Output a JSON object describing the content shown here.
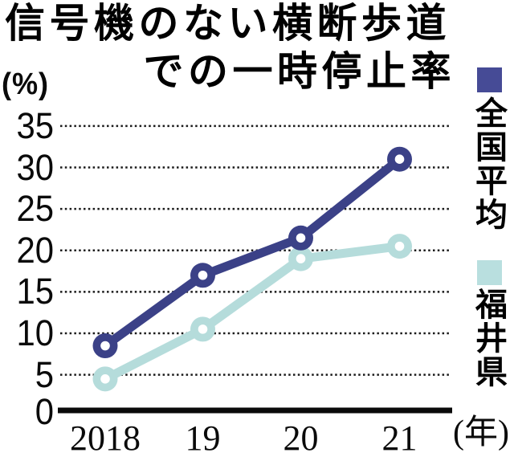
{
  "title": {
    "line1": "信号機のない横断歩道",
    "line2": "での一時停止率"
  },
  "axes": {
    "y_unit": "(%)",
    "x_unit": "(年)",
    "y_ticks": [
      35,
      30,
      25,
      20,
      15,
      10,
      5,
      0
    ],
    "x_ticks": [
      "2018",
      "19",
      "20",
      "21"
    ]
  },
  "legend": [
    {
      "label": "全国平均",
      "color": "#464b96"
    },
    {
      "label": "福井県",
      "color": "#b9dfdf"
    }
  ],
  "chart_data": {
    "type": "line",
    "title": "信号機のない横断歩道での一時停止率",
    "categories": [
      "2018",
      "19",
      "20",
      "21"
    ],
    "series": [
      {
        "name": "全国平均",
        "color": "#3b4187",
        "values": [
          8.5,
          17,
          21.5,
          31
        ]
      },
      {
        "name": "福井県",
        "color": "#b5dcdb",
        "values": [
          4.5,
          10.5,
          19,
          20.5
        ]
      }
    ],
    "xlabel": "(年)",
    "ylabel": "(%)",
    "ylim": [
      0,
      35
    ],
    "ytick_step": 5,
    "grid": true,
    "grid_style": "dotted",
    "legend_position": "right",
    "marker": "open-circle"
  },
  "colors": {
    "background": "#ffffff",
    "text": "#0a0a0a",
    "grid": "#1a1a1a",
    "axis": "#0a0a0a"
  }
}
